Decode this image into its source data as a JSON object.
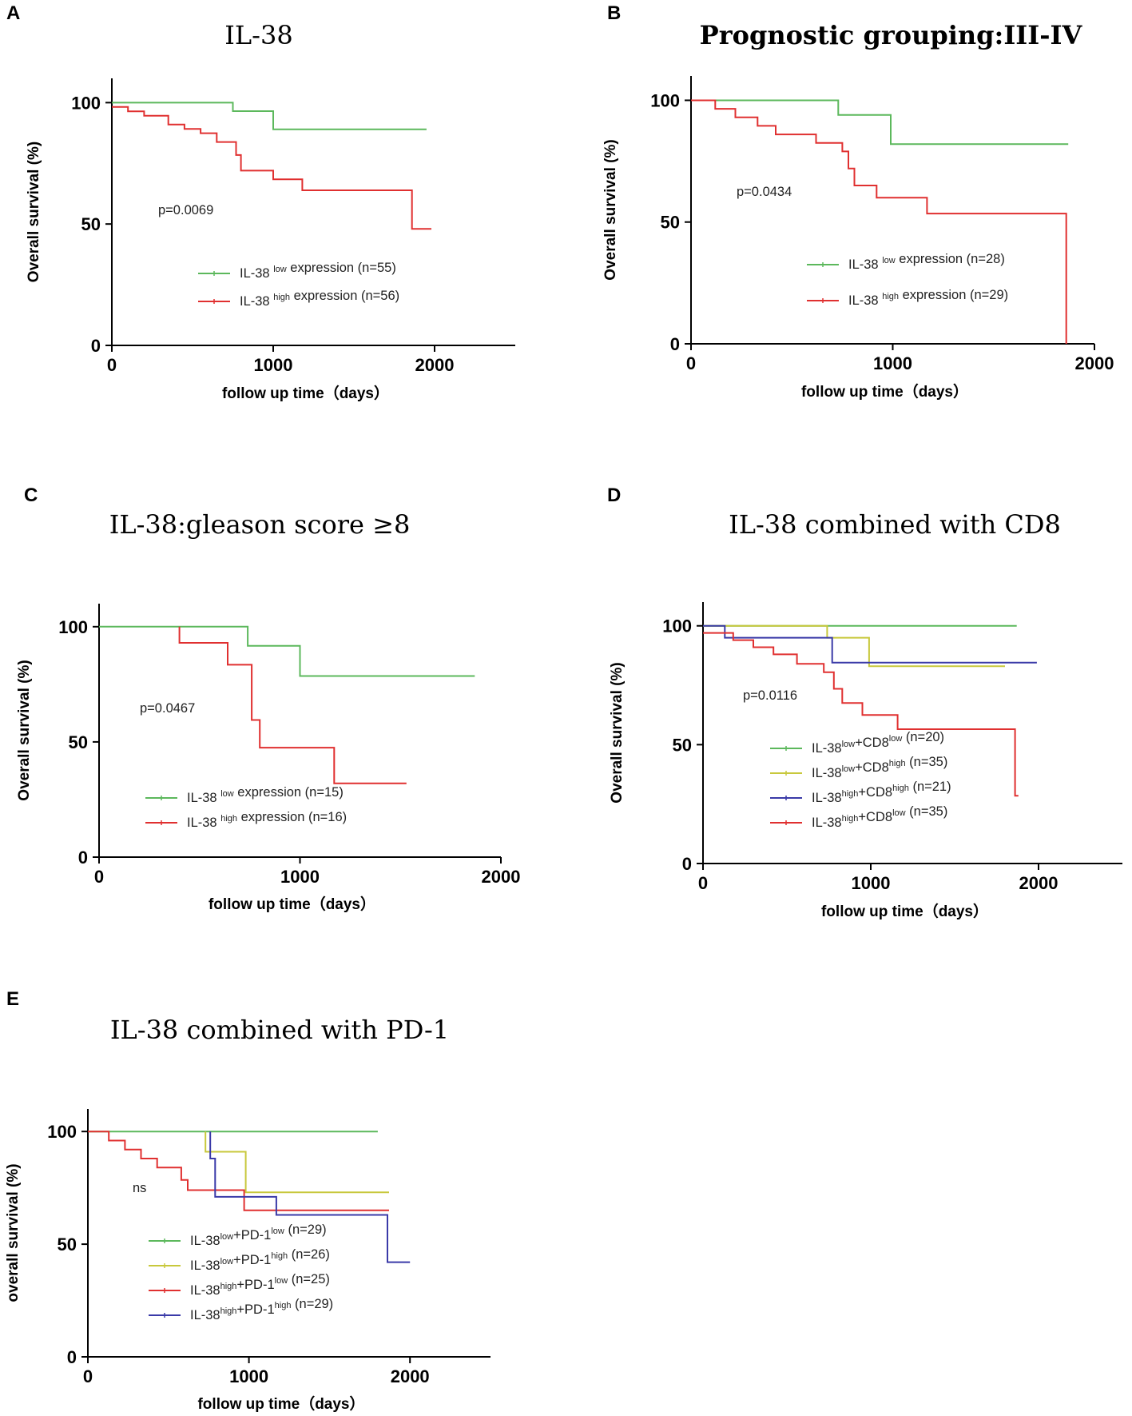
{
  "chart_data": [
    {
      "id": "A",
      "type": "line",
      "panel_label": "A",
      "title": "IL-38",
      "title_bold": false,
      "xlabel": "follow up time（days）",
      "ylabel": "Overall survival (%)",
      "xlim": [
        0,
        2500
      ],
      "ylim": [
        0,
        110
      ],
      "xticks": [
        0,
        1000,
        2000
      ],
      "yticks": [
        0,
        50,
        100
      ],
      "annotation": "p=0.0069",
      "series": [
        {
          "prefix": "IL-38 ",
          "sup1": "low",
          "mid": " expression (n=55)",
          "sup2": "",
          "suffix": "",
          "color": "#5cb85c",
          "x": [
            0,
            750,
            750,
            1000,
            1000,
            1950
          ],
          "y": [
            100,
            100,
            96.5,
            96.5,
            89,
            89
          ]
        },
        {
          "prefix": "IL-38 ",
          "sup1": "high",
          "mid": " expression (n=56)",
          "sup2": "",
          "suffix": "",
          "color": "#e03030",
          "x": [
            0,
            100,
            100,
            200,
            200,
            350,
            350,
            450,
            450,
            550,
            550,
            650,
            650,
            770,
            770,
            800,
            800,
            1000,
            1000,
            1180,
            1180,
            1860,
            1860,
            1980
          ],
          "y": [
            98.2,
            98.2,
            96.4,
            96.4,
            94.6,
            94.6,
            91,
            91,
            89.2,
            89.2,
            87.4,
            87.4,
            83.8,
            83.8,
            78.4,
            78.4,
            72,
            72,
            68.4,
            68.4,
            63.9,
            63.9,
            48,
            48
          ]
        }
      ]
    },
    {
      "id": "B",
      "type": "line",
      "panel_label": "B",
      "title": "Prognostic grouping:III-IV",
      "title_bold": true,
      "xlabel": "follow up time（days）",
      "ylabel": "Overall survival (%)",
      "xlim": [
        0,
        2000
      ],
      "ylim": [
        0,
        110
      ],
      "xticks": [
        0,
        1000,
        2000
      ],
      "yticks": [
        0,
        50,
        100
      ],
      "annotation": "p=0.0434",
      "series": [
        {
          "prefix": "IL-38 ",
          "sup1": "low",
          "mid": " expression (n=28)",
          "sup2": "",
          "suffix": "",
          "color": "#5cb85c",
          "x": [
            0,
            730,
            730,
            990,
            990,
            1870
          ],
          "y": [
            100,
            100,
            94,
            94,
            82,
            82
          ]
        },
        {
          "prefix": "IL-38 ",
          "sup1": "high",
          "mid": " expression (n=29)",
          "sup2": "",
          "suffix": "",
          "color": "#e03030",
          "x": [
            0,
            120,
            120,
            220,
            220,
            330,
            330,
            420,
            420,
            620,
            620,
            750,
            750,
            780,
            780,
            810,
            810,
            920,
            920,
            1170,
            1170,
            1860,
            1860
          ],
          "y": [
            100,
            100,
            96.5,
            96.5,
            93,
            93,
            89.5,
            89.5,
            86,
            86,
            82.5,
            82.5,
            79,
            79,
            72,
            72,
            65,
            65,
            60,
            60,
            53.5,
            53.5,
            0
          ]
        }
      ]
    },
    {
      "id": "C",
      "type": "line",
      "panel_label": "C",
      "title": "IL-38:gleason score ≥8",
      "title_bold": false,
      "xlabel": "follow up time（days）",
      "ylabel": "Overall survival (%)",
      "xlim": [
        0,
        2000
      ],
      "ylim": [
        0,
        110
      ],
      "xticks": [
        0,
        1000,
        2000
      ],
      "yticks": [
        0,
        50,
        100
      ],
      "annotation": "p=0.0467",
      "series": [
        {
          "prefix": "IL-38 ",
          "sup1": "low",
          "mid": " expression (n=15)",
          "sup2": "",
          "suffix": "",
          "color": "#5cb85c",
          "x": [
            0,
            740,
            740,
            1000,
            1000,
            1870
          ],
          "y": [
            100,
            100,
            91.7,
            91.7,
            78.6,
            78.6
          ]
        },
        {
          "prefix": "IL-38 ",
          "sup1": "high",
          "mid": " expression (n=16)",
          "sup2": "",
          "suffix": "",
          "color": "#e03030",
          "x": [
            400,
            400,
            640,
            640,
            760,
            760,
            800,
            800,
            1170,
            1170,
            1530
          ],
          "y": [
            100,
            93,
            93,
            83.5,
            83.5,
            59.5,
            59.5,
            47.5,
            47.5,
            32,
            32
          ]
        }
      ]
    },
    {
      "id": "D",
      "type": "line",
      "panel_label": "D",
      "title": "IL-38 combined with CD8",
      "title_bold": false,
      "xlabel": "follow up time（days）",
      "ylabel": "Overall survival (%)",
      "xlim": [
        0,
        2500
      ],
      "ylim": [
        0,
        110
      ],
      "xticks": [
        0,
        1000,
        2000
      ],
      "yticks": [
        0,
        50,
        100
      ],
      "annotation": "p=0.0116",
      "series": [
        {
          "prefix": "IL-38",
          "sup1": "low",
          "mid": "+CD8",
          "sup2": "low",
          "suffix": " (n=20)",
          "color": "#5cb85c",
          "x": [
            0,
            1870
          ],
          "y": [
            100,
            100
          ]
        },
        {
          "prefix": "IL-38",
          "sup1": "low",
          "mid": "+CD8",
          "sup2": "high",
          "suffix": " (n=35)",
          "color": "#c8c83c",
          "x": [
            0,
            740,
            740,
            990,
            990,
            1800
          ],
          "y": [
            100,
            100,
            95,
            95,
            83,
            83
          ]
        },
        {
          "prefix": "IL-38",
          "sup1": "high",
          "mid": "+CD8",
          "sup2": "high",
          "suffix": " (n=21)",
          "color": "#3a3aa8",
          "x": [
            0,
            130,
            130,
            770,
            770,
            1990
          ],
          "y": [
            100,
            100,
            95,
            95,
            84.5,
            84.5
          ]
        },
        {
          "prefix": "IL-38",
          "sup1": "high",
          "mid": "+CD8",
          "sup2": "low",
          "suffix": " (n=35)",
          "color": "#e03030",
          "x": [
            0,
            180,
            180,
            300,
            300,
            420,
            420,
            560,
            560,
            720,
            720,
            780,
            780,
            830,
            830,
            950,
            950,
            1160,
            1160,
            1860,
            1860,
            1880
          ],
          "y": [
            97,
            97,
            94,
            94,
            91,
            91,
            88,
            88,
            84,
            84,
            80.5,
            80.5,
            73.5,
            73.5,
            67.5,
            67.5,
            62.5,
            62.5,
            56.5,
            56.5,
            28.5,
            28.5
          ]
        }
      ]
    },
    {
      "id": "E",
      "type": "line",
      "panel_label": "E",
      "title": "IL-38 combined with PD-1",
      "title_bold": false,
      "xlabel": "follow up time（days）",
      "ylabel": "overall survival (%)",
      "xlim": [
        0,
        2500
      ],
      "ylim": [
        0,
        110
      ],
      "xticks": [
        0,
        1000,
        2000
      ],
      "yticks": [
        0,
        50,
        100
      ],
      "annotation": "ns",
      "series": [
        {
          "prefix": "IL-38",
          "sup1": "low",
          "mid": "+PD-1",
          "sup2": "low",
          "suffix": " (n=29)",
          "color": "#5cb85c",
          "x": [
            0,
            1800
          ],
          "y": [
            100,
            100
          ]
        },
        {
          "prefix": "IL-38",
          "sup1": "low",
          "mid": "+PD-1",
          "sup2": "high",
          "suffix": " (n=26)",
          "color": "#c8c83c",
          "x": [
            730,
            730,
            750,
            750,
            980,
            980,
            1870
          ],
          "y": [
            100,
            91,
            91,
            91,
            91,
            73,
            73
          ]
        },
        {
          "prefix": "IL-38",
          "sup1": "high",
          "mid": "+PD-1",
          "sup2": "low",
          "suffix": " (n=25)",
          "color": "#e03030",
          "x": [
            0,
            130,
            130,
            230,
            230,
            330,
            330,
            430,
            430,
            580,
            580,
            620,
            620,
            970,
            970,
            1870
          ],
          "y": [
            100,
            100,
            96,
            96,
            92,
            92,
            88,
            88,
            84,
            84,
            78.5,
            78.5,
            74,
            74,
            65,
            65
          ]
        },
        {
          "prefix": "IL-38",
          "sup1": "high",
          "mid": "+PD-1",
          "sup2": "high",
          "suffix": " (n=29)",
          "color": "#3a3aa8",
          "x": [
            760,
            760,
            790,
            790,
            1170,
            1170,
            1860,
            1860,
            2000
          ],
          "y": [
            100,
            88,
            88,
            71,
            71,
            63,
            63,
            42,
            42
          ]
        }
      ]
    }
  ]
}
